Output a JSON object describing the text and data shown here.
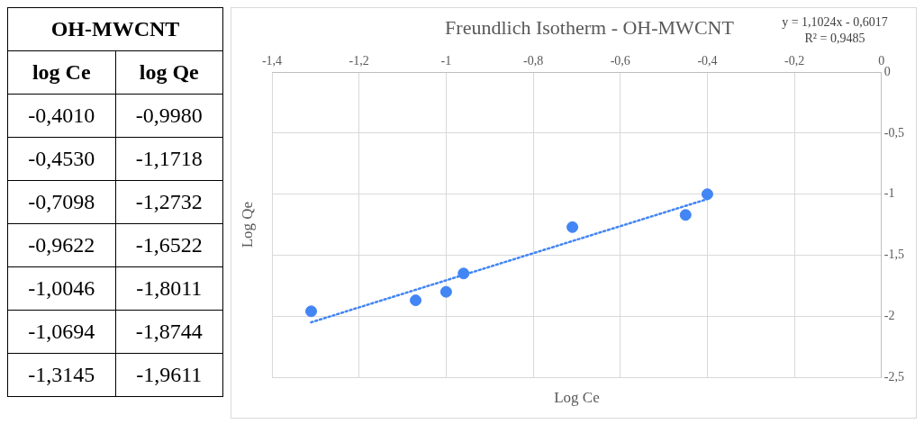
{
  "chart_data": [
    {
      "type": "other",
      "title": "OH-MWCNT",
      "annotations": [
        "log Ce",
        "log Qe",
        "-0,4010",
        "-0,9980",
        "-0,4530",
        "-1,1718",
        "-0,7098",
        "-1,2732",
        "-0,9622",
        "-1,6522",
        "-1,0046",
        "-1,8011",
        "-1,0694",
        "-1,8744",
        "-1,3145",
        "-1,9611"
      ]
    },
    {
      "type": "scatter",
      "title": "Freundlich Isotherm - OH-MWCNT",
      "xlabel": "Log Ce",
      "ylabel": "Log Qe",
      "annotations": [
        "y = 1,1024x - 0,6017",
        "R² = 0,9485"
      ],
      "series": [
        {
          "x": [
            -0.4,
            -0.45,
            -0.71,
            -0.96,
            -1.0,
            -1.07,
            -1.31
          ],
          "values": [
            -1.0,
            -1.17,
            -1.27,
            -1.65,
            -1.8,
            -1.87,
            -1.96
          ],
          "color": "#4285f4",
          "marker": "circle"
        },
        {
          "type": "line",
          "x": [
            -1.31,
            -0.4
          ],
          "values": [
            -2.05,
            -1.04
          ],
          "color": "#4285f4",
          "line_style": "dotted",
          "marker": "none"
        }
      ],
      "xlim": [
        -1.4,
        0
      ],
      "xticks": [
        {
          "value": -1.4,
          "label": "-1,4"
        },
        {
          "value": -1.2,
          "label": "-1,2"
        },
        -1,
        {
          "value": -0.8,
          "label": "-0,8"
        },
        {
          "value": -0.6,
          "label": "-0,6"
        },
        {
          "value": -0.4,
          "label": "-0,4"
        },
        {
          "value": -0.2,
          "label": "-0,2"
        },
        0
      ],
      "ylim": [
        -2.5,
        0
      ],
      "yticks": [
        0,
        {
          "value": -0.5,
          "label": "-0,5"
        },
        -1,
        {
          "value": -1.5,
          "label": "-1,5"
        },
        -2,
        {
          "value": -2.5,
          "label": "-2,5"
        }
      ],
      "grid": true,
      "legend": false
    }
  ]
}
